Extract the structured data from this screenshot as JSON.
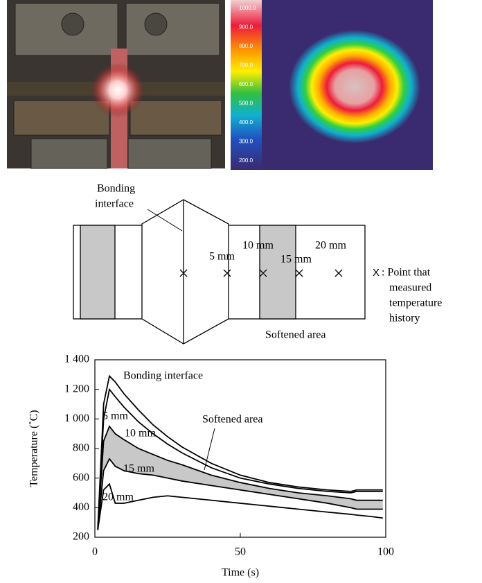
{
  "thermal_scale": [
    "1000.0",
    "900.0",
    "800.0",
    "700.0",
    "600.0",
    "500.0",
    "400.0",
    "300.0",
    "200.0"
  ],
  "diagram": {
    "bonding_label": [
      "Bonding",
      "interface"
    ],
    "distances": [
      "5 mm",
      "10 mm",
      "15 mm",
      "20 mm"
    ],
    "marker_legend": {
      "symbol": "X",
      "text": [
        ": Point that",
        "measured",
        "temperature",
        "history"
      ]
    },
    "softened_label": "Softened area"
  },
  "chart_data": {
    "type": "line",
    "xlabel": "Time (s)",
    "ylabel": "Temperature (˚C)",
    "xlim": [
      0,
      100
    ],
    "ylim": [
      200,
      1400
    ],
    "xticks": [
      0,
      50,
      100
    ],
    "yticks": [
      200,
      400,
      600,
      800,
      {
        "value": 1000,
        "label": "1 000"
      },
      {
        "value": 1200,
        "label": "1 200"
      },
      {
        "value": 1400,
        "label": "1 400"
      }
    ],
    "x": [
      1,
      3,
      5,
      7,
      10,
      15,
      20,
      25,
      30,
      40,
      50,
      60,
      70,
      80,
      88,
      90,
      95,
      99
    ],
    "series": [
      {
        "name": "Bonding interface",
        "color": "#000000",
        "values": [
          260,
          1100,
          1290,
          1250,
          1170,
          1060,
          960,
          880,
          810,
          700,
          620,
          570,
          540,
          520,
          510,
          520,
          520,
          520
        ]
      },
      {
        "name": "5 mm",
        "color": "#000000",
        "values": [
          250,
          1000,
          1200,
          1150,
          1080,
          980,
          900,
          830,
          770,
          670,
          600,
          560,
          530,
          510,
          500,
          510,
          510,
          510
        ]
      },
      {
        "name": "10 mm",
        "color": "#000000",
        "values": [
          250,
          850,
          950,
          900,
          860,
          800,
          760,
          720,
          690,
          620,
          570,
          530,
          500,
          480,
          460,
          450,
          450,
          450
        ]
      },
      {
        "name": "15 mm",
        "color": "#000000",
        "values": [
          250,
          650,
          730,
          680,
          650,
          630,
          620,
          600,
          580,
          550,
          520,
          490,
          460,
          430,
          400,
          390,
          390,
          390
        ]
      },
      {
        "name": "20 mm",
        "color": "#000000",
        "values": [
          250,
          520,
          560,
          430,
          430,
          450,
          470,
          480,
          470,
          450,
          430,
          410,
          390,
          370,
          355,
          350,
          340,
          330
        ]
      }
    ],
    "annotation": "Softened area",
    "band_color": "#c8c8c8"
  }
}
